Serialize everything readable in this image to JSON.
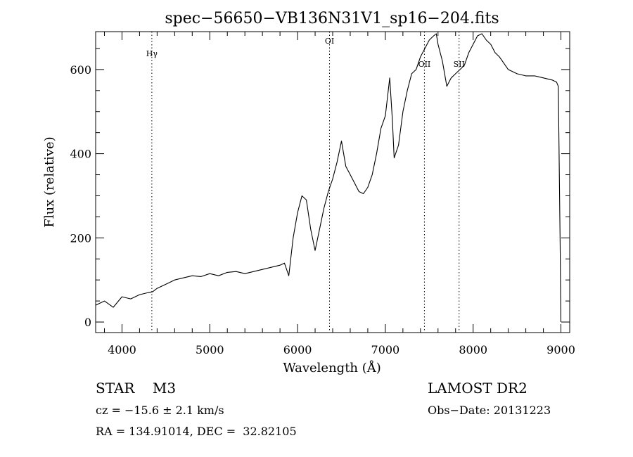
{
  "chart_data": {
    "type": "line",
    "title": "spec−56650−VB136N31V1_sp16−204.fits",
    "xlabel": "Wavelength (Å)",
    "ylabel": "Flux (relative)",
    "xlim": [
      3700,
      9100
    ],
    "ylim": [
      -25,
      690
    ],
    "x_ticks": [
      4000,
      5000,
      6000,
      7000,
      8000,
      9000
    ],
    "y_ticks": [
      0,
      200,
      400,
      600
    ],
    "grid": false,
    "line_color": "#000000",
    "lines": [
      {
        "label": "Hγ",
        "wavelength": 4340
      },
      {
        "label": "OI",
        "wavelength": 6364
      },
      {
        "label": "OII",
        "wavelength": 7445
      },
      {
        "label": "SII",
        "wavelength": 7840
      }
    ],
    "series": [
      {
        "x": [
          3700,
          3800,
          3900,
          4000,
          4100,
          4200,
          4300,
          4350,
          4400,
          4500,
          4600,
          4700,
          4800,
          4900,
          5000,
          5100,
          5200,
          5300,
          5400,
          5500,
          5600,
          5700,
          5800,
          5850,
          5900,
          5950,
          6000,
          6050,
          6100,
          6150,
          6200,
          6250,
          6300,
          6350,
          6400,
          6450,
          6500,
          6550,
          6600,
          6650,
          6700,
          6750,
          6800,
          6850,
          6900,
          6950,
          7000,
          7050,
          7080,
          7100,
          7150,
          7200,
          7250,
          7300,
          7350,
          7400,
          7450,
          7500,
          7550,
          7580,
          7600,
          7650,
          7700,
          7750,
          7800,
          7850,
          7900,
          7950,
          8000,
          8050,
          8100,
          8150,
          8200,
          8250,
          8300,
          8350,
          8400,
          8450,
          8500,
          8600,
          8700,
          8800,
          8900,
          8950,
          8970,
          8990,
          9000
        ],
        "y": [
          40,
          50,
          35,
          60,
          55,
          65,
          70,
          72,
          80,
          90,
          100,
          105,
          110,
          108,
          115,
          110,
          118,
          120,
          115,
          120,
          125,
          130,
          135,
          140,
          110,
          200,
          260,
          300,
          290,
          220,
          170,
          220,
          270,
          310,
          340,
          380,
          430,
          370,
          350,
          330,
          310,
          305,
          320,
          350,
          400,
          460,
          490,
          580,
          480,
          390,
          420,
          500,
          550,
          590,
          600,
          630,
          650,
          670,
          680,
          685,
          660,
          620,
          560,
          580,
          590,
          600,
          610,
          640,
          660,
          680,
          685,
          670,
          660,
          640,
          630,
          615,
          600,
          595,
          590,
          585,
          585,
          580,
          575,
          570,
          560,
          200,
          0
        ]
      }
    ]
  },
  "info": {
    "object": "STAR    M3",
    "redshift": "cz = −15.6 ± 2.1 km/s",
    "coords": "RA = 134.91014, DEC =  32.82105",
    "survey": "LAMOST DR2",
    "obs_date": "Obs−Date: 20131223"
  }
}
